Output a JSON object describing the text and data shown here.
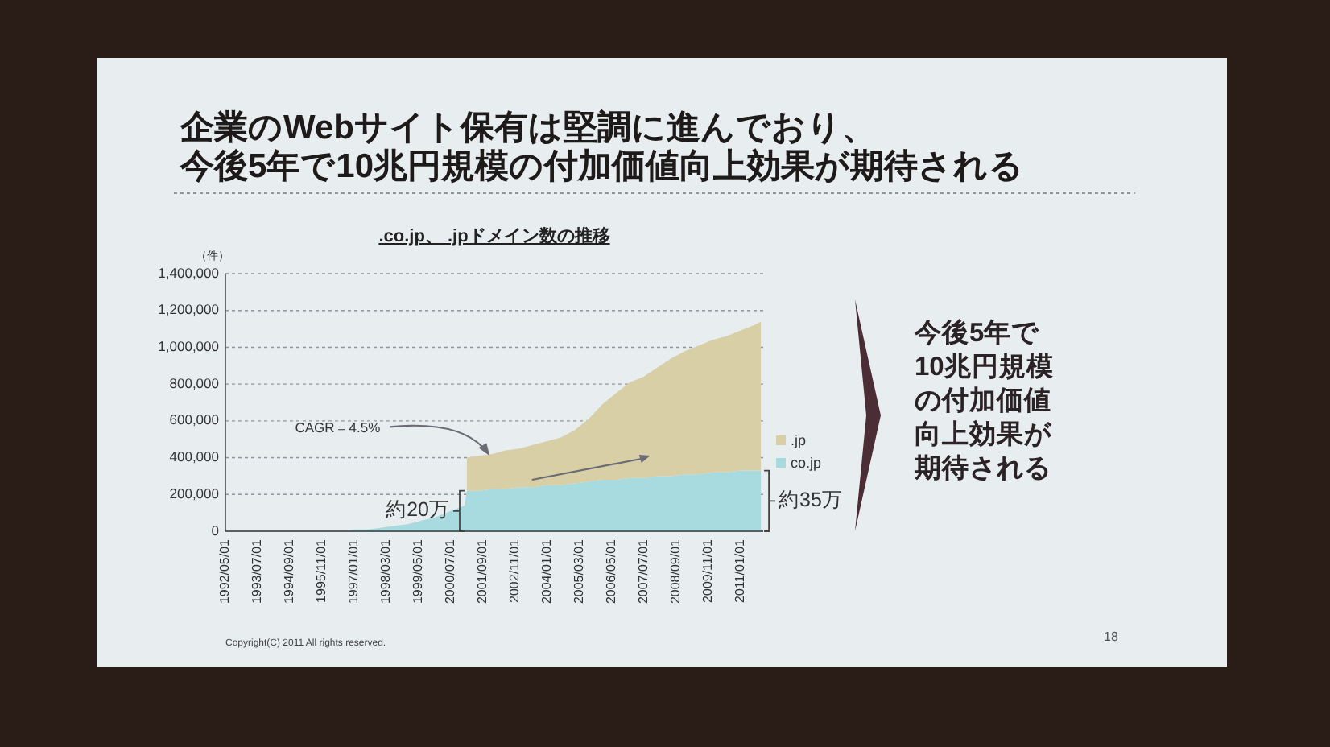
{
  "chart_data": {
    "type": "area",
    "stacked": true,
    "title": "企業のWebサイト保有は堅調に進んでおり、今後5年で10兆円規模の付加価値向上効果が期待される",
    "subtitle": ".co.jp、 .jpドメイン数の推移",
    "ylabel": "（件）",
    "x": [
      "1992-05",
      "1993-05",
      "1994-05",
      "1995-05",
      "1996-01",
      "1996-07",
      "1997-01",
      "1997-07",
      "1998-01",
      "1998-07",
      "1999-01",
      "1999-07",
      "2000-01",
      "2000-07",
      "2001-01",
      "2001-02",
      "2001-07",
      "2002-01",
      "2002-07",
      "2003-01",
      "2003-07",
      "2004-01",
      "2004-07",
      "2005-01",
      "2005-07",
      "2006-01",
      "2006-07",
      "2007-01",
      "2007-07",
      "2008-01",
      "2008-07",
      "2009-01",
      "2009-07",
      "2010-01",
      "2010-07",
      "2011-01",
      "2011-07",
      "2011-10"
    ],
    "series": [
      {
        "name": "co.jp",
        "color": "#a8dbe0",
        "values": [
          0,
          0,
          0,
          0,
          0,
          0,
          10000,
          10000,
          20000,
          30000,
          40000,
          60000,
          80000,
          110000,
          140000,
          220000,
          220000,
          230000,
          230000,
          240000,
          240000,
          250000,
          250000,
          260000,
          270000,
          280000,
          280000,
          290000,
          290000,
          300000,
          300000,
          310000,
          310000,
          320000,
          320000,
          330000,
          330000,
          330000
        ]
      },
      {
        "name": ".jp",
        "color": "#d8cfa6",
        "values": [
          null,
          null,
          null,
          null,
          null,
          null,
          null,
          null,
          null,
          null,
          null,
          null,
          null,
          null,
          null,
          180000,
          190000,
          190000,
          210000,
          210000,
          230000,
          240000,
          260000,
          290000,
          340000,
          410000,
          470000,
          520000,
          550000,
          590000,
          640000,
          670000,
          700000,
          720000,
          740000,
          760000,
          790000,
          810000
        ]
      }
    ],
    "xlim": [
      "1992-05-01",
      "2011-11-01"
    ],
    "xticks": [
      {
        "value": "1992-05-01",
        "label": "1992/05/01"
      },
      {
        "value": "1993-07-01",
        "label": "1993/07/01"
      },
      {
        "value": "1994-09-01",
        "label": "1994/09/01"
      },
      {
        "value": "1995-11-01",
        "label": "1995/11/01"
      },
      {
        "value": "1997-01-01",
        "label": "1997/01/01"
      },
      {
        "value": "1998-03-01",
        "label": "1998/03/01"
      },
      {
        "value": "1999-05-01",
        "label": "1999/05/01"
      },
      {
        "value": "2000-07-01",
        "label": "2000/07/01"
      },
      {
        "value": "2001-09-01",
        "label": "2001/09/01"
      },
      {
        "value": "2002-11-01",
        "label": "2002/11/01"
      },
      {
        "value": "2004-01-01",
        "label": "2004/01/01"
      },
      {
        "value": "2005-03-01",
        "label": "2005/03/01"
      },
      {
        "value": "2006-05-01",
        "label": "2006/05/01"
      },
      {
        "value": "2007-07-01",
        "label": "2007/07/01"
      },
      {
        "value": "2008-09-01",
        "label": "2008/09/01"
      },
      {
        "value": "2009-11-01",
        "label": "2009/11/01"
      },
      {
        "value": "2011-01-01",
        "label": "2011/01/01"
      }
    ],
    "ylim": [
      0,
      1400000
    ],
    "yticks": [
      0,
      {
        "value": 200000,
        "label": "200,000"
      },
      {
        "value": 400000,
        "label": "400,000"
      },
      {
        "value": 600000,
        "label": "600,000"
      },
      {
        "value": 800000,
        "label": "800,000"
      },
      {
        "value": 1000000,
        "label": "1,000,000"
      },
      {
        "value": 1200000,
        "label": "1,200,000"
      },
      {
        "value": 1400000,
        "label": "1,400,000"
      }
    ],
    "grid": "y",
    "legend": "right",
    "annotations": [
      {
        "text": "CAGR＝4.5%",
        "x": "2001-12",
        "y": 410000
      },
      {
        "text": "約20万",
        "x": "2001-01",
        "y": 220000
      },
      {
        "text": "約35万",
        "x": "2011-10",
        "y": 330000
      },
      "今後5年で10兆円規模の付加価値向上効果が期待される",
      "18",
      "Copyright(C) 2011 All rights reserved."
    ]
  }
}
